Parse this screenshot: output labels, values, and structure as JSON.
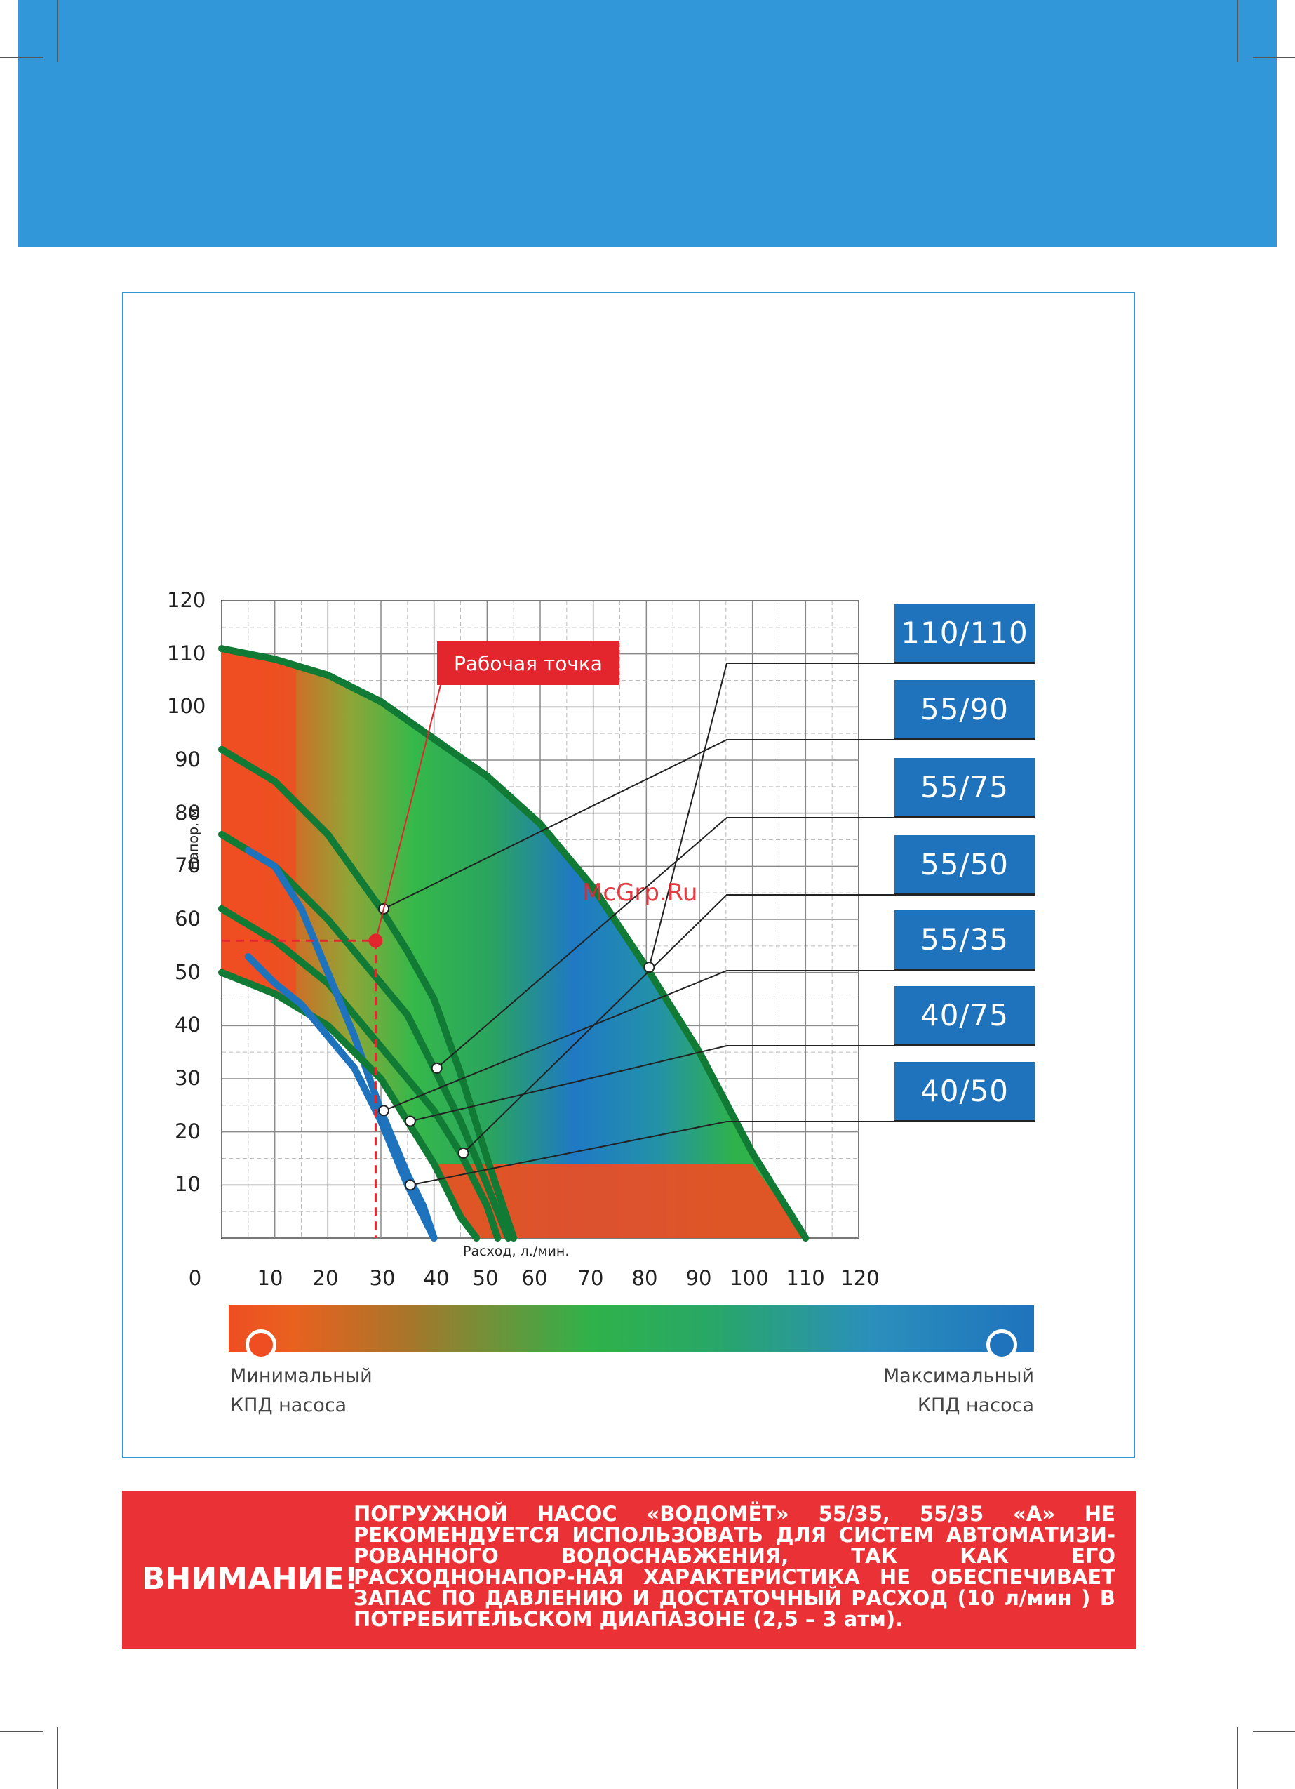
{
  "chart_data": {
    "type": "line",
    "title": "",
    "xlabel": "Расход, л./мин.",
    "ylabel": "Напор, м.",
    "xlim": [
      0,
      120
    ],
    "ylim": [
      0,
      120
    ],
    "x_ticks": [
      "0",
      "10",
      "20",
      "30",
      "40",
      "50",
      "60",
      "70",
      "80",
      "90",
      "100",
      "110",
      "120"
    ],
    "y_ticks": [
      "10",
      "20",
      "30",
      "40",
      "50",
      "60",
      "70",
      "80",
      "90",
      "100",
      "110",
      "120"
    ],
    "grid": true,
    "series": [
      {
        "name": "110/110",
        "color": "#117a35",
        "x": [
          0,
          10,
          20,
          30,
          40,
          50,
          60,
          70,
          80,
          90,
          100,
          110
        ],
        "y": [
          111,
          109,
          106,
          101,
          94,
          87,
          78,
          66,
          51,
          35,
          16,
          0
        ]
      },
      {
        "name": "55/90",
        "color": "#117a35",
        "x": [
          0,
          10,
          20,
          30,
          35,
          40,
          45,
          50,
          55
        ],
        "y": [
          92,
          86,
          76,
          62,
          54,
          45,
          31,
          15,
          0
        ]
      },
      {
        "name": "55/75",
        "color": "#117a35",
        "x": [
          0,
          10,
          20,
          30,
          35,
          40,
          45,
          50,
          54
        ],
        "y": [
          76,
          70,
          60,
          48,
          42,
          32,
          22,
          10,
          0
        ]
      },
      {
        "name": "55/50",
        "color": "#117a35",
        "x": [
          0,
          10,
          20,
          30,
          40,
          45,
          50,
          52
        ],
        "y": [
          62,
          56,
          48,
          36,
          24,
          16,
          6,
          0
        ]
      },
      {
        "name": "55/35",
        "color": "#1f73bd",
        "x": [
          5,
          10,
          15,
          20,
          25,
          30,
          35,
          38,
          40
        ],
        "y": [
          73,
          70,
          62,
          50,
          38,
          24,
          12,
          6,
          0
        ]
      },
      {
        "name": "40/75",
        "color": "#117a35",
        "x": [
          0,
          10,
          20,
          30,
          35,
          40,
          45,
          48
        ],
        "y": [
          50,
          46,
          40,
          30,
          22,
          14,
          4,
          0
        ]
      },
      {
        "name": "40/50",
        "color": "#1f73bd",
        "x": [
          5,
          10,
          15,
          20,
          25,
          30,
          35,
          40
        ],
        "y": [
          53,
          48,
          44,
          38,
          32,
          22,
          10,
          0
        ]
      }
    ],
    "work_point": {
      "label": "Рабочая точка",
      "x": 29,
      "y": 56
    }
  },
  "legend_labels": [
    "110/110",
    "55/90",
    "55/75",
    "55/50",
    "55/35",
    "40/75",
    "40/50"
  ],
  "watermark": "McGrp.Ru",
  "kpd_scale": {
    "min_label_line1": "Минимальный",
    "min_label_line2": "КПД насоса",
    "max_label_line1": "Максимальный",
    "max_label_line2": "КПД насоса",
    "min_color": "#ee4e22",
    "max_color": "#1f73bd"
  },
  "warning": {
    "title": "ВНИМАНИЕ!",
    "text": "ПОГРУЖНОЙ НАСОС «ВОДОМЁТ» 55/35, 55/35 «А» НЕ РЕКОМЕНДУЕТСЯ ИСПОЛЬЗОВАТЬ ДЛЯ СИСТЕМ АВТОМАТИЗИ-РОВАННОГО ВОДОСНАБЖЕНИЯ, ТАК КАК ЕГО РАСХОДНОНАПОР-НАЯ ХАРАКТЕРИСТИКА НЕ ОБЕСПЕЧИВАЕТ ЗАПАС ПО ДАВЛЕНИЮ И ДОСТАТОЧНЫЙ РАСХОД (10 л/мин ) В ПОТРЕБИТЕЛЬСКОМ ДИАПАЗОНЕ (2,5 – 3 атм).",
    "background": "#ea3136"
  },
  "header_color": "#3197d9"
}
